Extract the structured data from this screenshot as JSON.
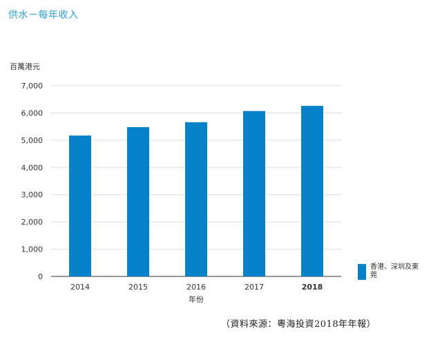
{
  "title": "供水－每年收入",
  "source": "（資料來源：粵海投資2018年年報）",
  "colors": {
    "bar": "#0582c9",
    "title": "#29a3da",
    "grid": "#dddddd"
  },
  "chart_data": {
    "type": "bar",
    "categories": [
      "2014",
      "2015",
      "2016",
      "2017",
      "2018"
    ],
    "highlight_category": "2018",
    "series": [
      {
        "name": "香港、深圳及東莞",
        "values": [
          5170,
          5480,
          5660,
          6070,
          6260
        ]
      }
    ],
    "ylabel": "百萬港元",
    "xlabel": "年份",
    "ylim": [
      0,
      7000
    ],
    "yticks": [
      0,
      1000,
      2000,
      3000,
      4000,
      5000,
      6000,
      7000
    ],
    "ytick_labels": [
      "0",
      "1,000",
      "2,000",
      "3,000",
      "4,000",
      "5,000",
      "6,000",
      "7,000"
    ],
    "grid": true,
    "legend_position": "bottom-right"
  }
}
